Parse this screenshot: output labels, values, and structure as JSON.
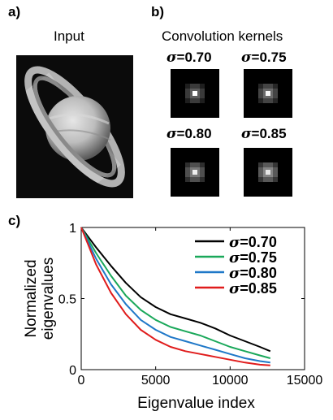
{
  "panel_a": {
    "letter": "a)",
    "title": "Input"
  },
  "panel_b": {
    "letter": "b)",
    "title": "Convolution kernels",
    "kernels": [
      {
        "sigma_symbol": "σ",
        "sigma_value": "=0.70"
      },
      {
        "sigma_symbol": "σ",
        "sigma_value": "=0.75"
      },
      {
        "sigma_symbol": "σ",
        "sigma_value": "=0.80"
      },
      {
        "sigma_symbol": "σ",
        "sigma_value": "=0.85"
      }
    ]
  },
  "panel_c": {
    "letter": "c)"
  },
  "chart_data": {
    "type": "line",
    "xlabel": "Eigenvalue index",
    "ylabel": [
      "Normalized",
      "eigenvalues"
    ],
    "xlim": [
      0,
      15000
    ],
    "ylim": [
      0,
      1
    ],
    "xticks": [
      "0",
      "5000",
      "10000",
      "15000"
    ],
    "yticks": [
      "0",
      "0.5",
      "1"
    ],
    "grid": false,
    "legend_position": "top-right",
    "series": [
      {
        "name": "σ=0.70",
        "color": "#000000",
        "x": [
          0,
          500,
          1000,
          2000,
          3000,
          4000,
          5000,
          6000,
          7000,
          8000,
          9000,
          10000,
          11000,
          12000,
          12700
        ],
        "y": [
          1.0,
          0.93,
          0.86,
          0.73,
          0.61,
          0.51,
          0.44,
          0.39,
          0.36,
          0.33,
          0.29,
          0.24,
          0.2,
          0.16,
          0.13
        ]
      },
      {
        "name": "σ=0.75",
        "color": "#1aa85a",
        "x": [
          0,
          500,
          1000,
          2000,
          3000,
          4000,
          5000,
          6000,
          7000,
          8000,
          9000,
          10000,
          11000,
          12000,
          12700
        ],
        "y": [
          1.0,
          0.91,
          0.82,
          0.66,
          0.52,
          0.42,
          0.35,
          0.3,
          0.27,
          0.24,
          0.2,
          0.16,
          0.13,
          0.1,
          0.08
        ]
      },
      {
        "name": "σ=0.80",
        "color": "#1f78c8",
        "x": [
          0,
          500,
          1000,
          2000,
          3000,
          4000,
          5000,
          6000,
          7000,
          8000,
          9000,
          10000,
          11000,
          12000,
          12700
        ],
        "y": [
          1.0,
          0.89,
          0.78,
          0.6,
          0.46,
          0.35,
          0.28,
          0.23,
          0.2,
          0.17,
          0.14,
          0.11,
          0.08,
          0.06,
          0.05
        ]
      },
      {
        "name": "σ=0.85",
        "color": "#e01c1c",
        "x": [
          0,
          500,
          1000,
          2000,
          3000,
          4000,
          5000,
          6000,
          7000,
          8000,
          9000,
          10000,
          11000,
          12000,
          12700
        ],
        "y": [
          1.0,
          0.87,
          0.74,
          0.54,
          0.39,
          0.28,
          0.21,
          0.16,
          0.13,
          0.11,
          0.09,
          0.07,
          0.05,
          0.035,
          0.03
        ]
      }
    ]
  }
}
